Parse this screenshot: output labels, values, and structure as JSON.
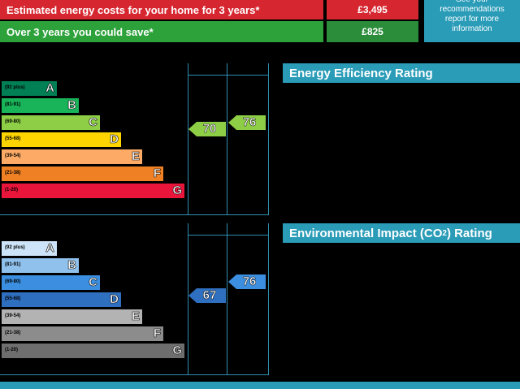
{
  "header": {
    "rows": [
      {
        "label": "Estimated energy costs for your home for 3 years*",
        "value": "£3,495"
      },
      {
        "label": "Over 3 years you could save*",
        "value": "£825"
      }
    ],
    "note": "See your recommendations report for more information"
  },
  "ratings": [
    {
      "title": [
        "Energy Efficiency Rating"
      ],
      "bands": [
        {
          "range": "(92 plus)",
          "letter": "A"
        },
        {
          "range": "(81-91)",
          "letter": "B"
        },
        {
          "range": "(69-80)",
          "letter": "C"
        },
        {
          "range": "(55-68)",
          "letter": "D"
        },
        {
          "range": "(39-54)",
          "letter": "E"
        },
        {
          "range": "(21-38)",
          "letter": "F"
        },
        {
          "range": "(1-20)",
          "letter": "G"
        }
      ],
      "current": "70",
      "potential": "76"
    },
    {
      "title": [
        "Environmental Impact (CO",
        "2",
        ") Rating"
      ],
      "bands": [
        {
          "range": "(92 plus)",
          "letter": "A"
        },
        {
          "range": "(81-91)",
          "letter": "B"
        },
        {
          "range": "(69-80)",
          "letter": "C"
        },
        {
          "range": "(55-68)",
          "letter": "D"
        },
        {
          "range": "(39-54)",
          "letter": "E"
        },
        {
          "range": "(21-38)",
          "letter": "F"
        },
        {
          "range": "(1-20)",
          "letter": "G"
        }
      ],
      "current": "67",
      "potential": "76"
    }
  ]
}
